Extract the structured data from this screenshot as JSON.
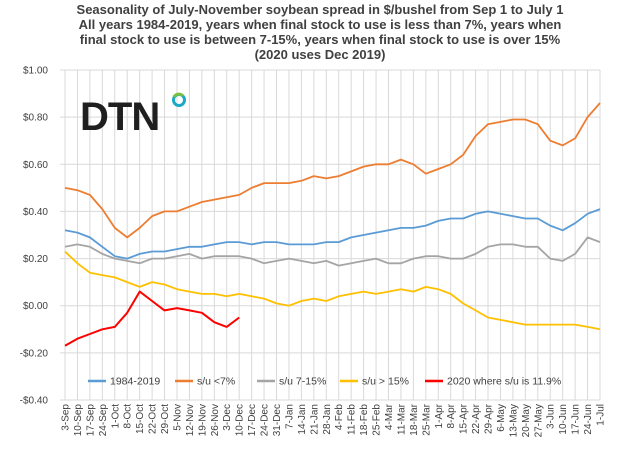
{
  "chart_data": {
    "type": "line",
    "title_lines": [
      "Seasonality of July-November soybean spread in $/bushel from Sep 1 to July 1",
      "All years 1984-2019, years when final stock to use is less than 7%, years when",
      "final stock to use is between 7-15%, years when final stock to use is over 15%",
      "(2020 uses Dec 2019)"
    ],
    "logo": "DTN",
    "grid": true,
    "legend_position": "bottom",
    "ylim": [
      -0.4,
      1.0
    ],
    "y_ticks": [
      {
        "value": 1.0,
        "label": "$1.00"
      },
      {
        "value": 0.8,
        "label": "$0.80"
      },
      {
        "value": 0.6,
        "label": "$0.60"
      },
      {
        "value": 0.4,
        "label": "$0.40"
      },
      {
        "value": 0.2,
        "label": "$0.20"
      },
      {
        "value": 0.0,
        "label": "$0.00"
      },
      {
        "value": -0.2,
        "label": "-$0.20"
      },
      {
        "value": -0.4,
        "label": "-$0.40"
      }
    ],
    "x_ticks": [
      "3-Sep",
      "10-Sep",
      "17-Sep",
      "24-Sep",
      "1-Oct",
      "8-Oct",
      "15-Oct",
      "22-Oct",
      "29-Oct",
      "5-Nov",
      "12-Nov",
      "19-Nov",
      "26-Nov",
      "3-Dec",
      "10-Dec",
      "17-Dec",
      "24-Dec",
      "31-Dec",
      "7-Jan",
      "14-Jan",
      "21-Jan",
      "28-Jan",
      "4-Feb",
      "11-Feb",
      "18-Feb",
      "25-Feb",
      "4-Mar",
      "11-Mar",
      "18-Mar",
      "25-Mar",
      "1-Apr",
      "8-Apr",
      "15-Apr",
      "22-Apr",
      "29-Apr",
      "6-May",
      "13-May",
      "20-May",
      "27-May",
      "3-Jun",
      "10-Jun",
      "17-Jun",
      "24-Jun",
      "1-Jul"
    ],
    "series": [
      {
        "name": "1984-2019",
        "color": "#5B9BD5",
        "x": [
          "3-Sep",
          "10-Sep",
          "17-Sep",
          "24-Sep",
          "1-Oct",
          "8-Oct",
          "15-Oct",
          "22-Oct",
          "29-Oct",
          "5-Nov",
          "12-Nov",
          "19-Nov",
          "26-Nov",
          "3-Dec",
          "10-Dec",
          "17-Dec",
          "24-Dec",
          "31-Dec",
          "7-Jan",
          "14-Jan",
          "21-Jan",
          "28-Jan",
          "4-Feb",
          "11-Feb",
          "18-Feb",
          "25-Feb",
          "4-Mar",
          "11-Mar",
          "18-Mar",
          "25-Mar",
          "1-Apr",
          "8-Apr",
          "15-Apr",
          "22-Apr",
          "29-Apr",
          "6-May",
          "13-May",
          "20-May",
          "27-May",
          "3-Jun",
          "10-Jun",
          "17-Jun",
          "24-Jun",
          "1-Jul"
        ],
        "values": [
          0.32,
          0.31,
          0.29,
          0.25,
          0.21,
          0.2,
          0.22,
          0.23,
          0.23,
          0.24,
          0.25,
          0.25,
          0.26,
          0.27,
          0.27,
          0.26,
          0.27,
          0.27,
          0.26,
          0.26,
          0.26,
          0.27,
          0.27,
          0.29,
          0.3,
          0.31,
          0.32,
          0.33,
          0.33,
          0.34,
          0.36,
          0.37,
          0.37,
          0.39,
          0.4,
          0.39,
          0.38,
          0.37,
          0.37,
          0.34,
          0.32,
          0.35,
          0.39,
          0.41
        ]
      },
      {
        "name": "s/u <7%",
        "color": "#ED7D31",
        "x": [
          "3-Sep",
          "10-Sep",
          "17-Sep",
          "24-Sep",
          "1-Oct",
          "8-Oct",
          "15-Oct",
          "22-Oct",
          "29-Oct",
          "5-Nov",
          "12-Nov",
          "19-Nov",
          "26-Nov",
          "3-Dec",
          "10-Dec",
          "17-Dec",
          "24-Dec",
          "31-Dec",
          "7-Jan",
          "14-Jan",
          "21-Jan",
          "28-Jan",
          "4-Feb",
          "11-Feb",
          "18-Feb",
          "25-Feb",
          "4-Mar",
          "11-Mar",
          "18-Mar",
          "25-Mar",
          "1-Apr",
          "8-Apr",
          "15-Apr",
          "22-Apr",
          "29-Apr",
          "6-May",
          "13-May",
          "20-May",
          "27-May",
          "3-Jun",
          "10-Jun",
          "17-Jun",
          "24-Jun",
          "1-Jul"
        ],
        "values": [
          0.5,
          0.49,
          0.47,
          0.41,
          0.33,
          0.29,
          0.33,
          0.38,
          0.4,
          0.4,
          0.42,
          0.44,
          0.45,
          0.46,
          0.47,
          0.5,
          0.52,
          0.52,
          0.52,
          0.53,
          0.55,
          0.54,
          0.55,
          0.57,
          0.59,
          0.6,
          0.6,
          0.62,
          0.6,
          0.56,
          0.58,
          0.6,
          0.64,
          0.72,
          0.77,
          0.78,
          0.79,
          0.79,
          0.77,
          0.7,
          0.68,
          0.71,
          0.8,
          0.86
        ]
      },
      {
        "name": "s/u 7-15%",
        "color": "#A5A5A5",
        "x": [
          "3-Sep",
          "10-Sep",
          "17-Sep",
          "24-Sep",
          "1-Oct",
          "8-Oct",
          "15-Oct",
          "22-Oct",
          "29-Oct",
          "5-Nov",
          "12-Nov",
          "19-Nov",
          "26-Nov",
          "3-Dec",
          "10-Dec",
          "17-Dec",
          "24-Dec",
          "31-Dec",
          "7-Jan",
          "14-Jan",
          "21-Jan",
          "28-Jan",
          "4-Feb",
          "11-Feb",
          "18-Feb",
          "25-Feb",
          "4-Mar",
          "11-Mar",
          "18-Mar",
          "25-Mar",
          "1-Apr",
          "8-Apr",
          "15-Apr",
          "22-Apr",
          "29-Apr",
          "6-May",
          "13-May",
          "20-May",
          "27-May",
          "3-Jun",
          "10-Jun",
          "17-Jun",
          "24-Jun",
          "1-Jul"
        ],
        "values": [
          0.25,
          0.26,
          0.25,
          0.22,
          0.2,
          0.19,
          0.18,
          0.2,
          0.2,
          0.21,
          0.22,
          0.2,
          0.21,
          0.21,
          0.21,
          0.2,
          0.18,
          0.19,
          0.2,
          0.19,
          0.18,
          0.19,
          0.17,
          0.18,
          0.19,
          0.2,
          0.18,
          0.18,
          0.2,
          0.21,
          0.21,
          0.2,
          0.2,
          0.22,
          0.25,
          0.26,
          0.26,
          0.25,
          0.25,
          0.2,
          0.19,
          0.22,
          0.29,
          0.27
        ]
      },
      {
        "name": "s/u > 15%",
        "color": "#FFC000",
        "x": [
          "3-Sep",
          "10-Sep",
          "17-Sep",
          "24-Sep",
          "1-Oct",
          "8-Oct",
          "15-Oct",
          "22-Oct",
          "29-Oct",
          "5-Nov",
          "12-Nov",
          "19-Nov",
          "26-Nov",
          "3-Dec",
          "10-Dec",
          "17-Dec",
          "24-Dec",
          "31-Dec",
          "7-Jan",
          "14-Jan",
          "21-Jan",
          "28-Jan",
          "4-Feb",
          "11-Feb",
          "18-Feb",
          "25-Feb",
          "4-Mar",
          "11-Mar",
          "18-Mar",
          "25-Mar",
          "1-Apr",
          "8-Apr",
          "15-Apr",
          "22-Apr",
          "29-Apr",
          "6-May",
          "13-May",
          "20-May",
          "27-May",
          "3-Jun",
          "10-Jun",
          "17-Jun",
          "24-Jun",
          "1-Jul"
        ],
        "values": [
          0.23,
          0.18,
          0.14,
          0.13,
          0.12,
          0.1,
          0.08,
          0.1,
          0.09,
          0.07,
          0.06,
          0.05,
          0.05,
          0.04,
          0.05,
          0.04,
          0.03,
          0.01,
          0.0,
          0.02,
          0.03,
          0.02,
          0.04,
          0.05,
          0.06,
          0.05,
          0.06,
          0.07,
          0.06,
          0.08,
          0.07,
          0.05,
          0.01,
          -0.02,
          -0.05,
          -0.06,
          -0.07,
          -0.08,
          -0.08,
          -0.08,
          -0.08,
          -0.08,
          -0.09,
          -0.1
        ]
      },
      {
        "name": "2020 where s/u is 11.9%",
        "color": "#FF0000",
        "x": [
          "3-Sep",
          "10-Sep",
          "17-Sep",
          "24-Sep",
          "1-Oct",
          "8-Oct",
          "15-Oct",
          "22-Oct",
          "29-Oct",
          "5-Nov",
          "12-Nov",
          "19-Nov",
          "26-Nov",
          "3-Dec",
          "10-Dec"
        ],
        "values": [
          -0.17,
          -0.14,
          -0.12,
          -0.1,
          -0.09,
          -0.03,
          0.06,
          0.02,
          -0.02,
          -0.01,
          -0.02,
          -0.03,
          -0.07,
          -0.09,
          -0.05
        ]
      }
    ]
  }
}
